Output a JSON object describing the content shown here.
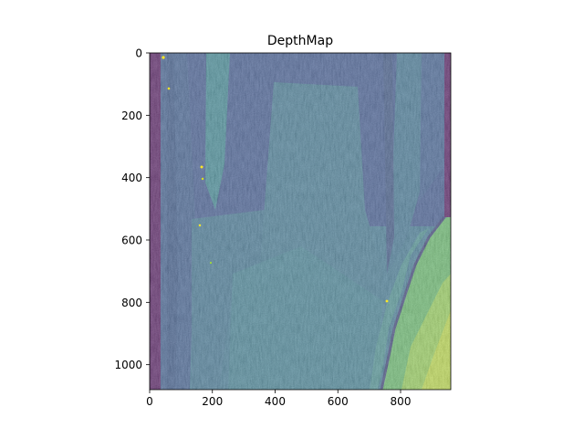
{
  "chart_data": {
    "type": "heatmap",
    "title": "DepthMap",
    "xlabel": "",
    "ylabel": "",
    "image_shape": [
      1080,
      960
    ],
    "xlim": [
      0,
      960
    ],
    "ylim": [
      1080,
      0
    ],
    "x_ticks": [
      0,
      200,
      400,
      600,
      800
    ],
    "y_ticks": [
      0,
      200,
      400,
      600,
      800,
      1000
    ],
    "colormap": "viridis",
    "value_range": [
      0,
      1
    ],
    "grid": false,
    "legend": "none",
    "regions": [
      {
        "name": "left border",
        "x": [
          0,
          35
        ],
        "y": [
          0,
          1080
        ],
        "value": 0.0
      },
      {
        "name": "right border",
        "x": [
          945,
          960
        ],
        "y": [
          0,
          530
        ],
        "value": 0.0
      },
      {
        "name": "near wall lower right",
        "x": [
          800,
          960
        ],
        "y": [
          530,
          1080
        ],
        "value": 0.85
      }
    ]
  },
  "colors": {
    "viridis_low": "#440154",
    "viridis_dark_blue": "#2c4a8a",
    "viridis_mid": "#2f6f8e",
    "viridis_teal": "#21918c",
    "viridis_green": "#5ec962",
    "viridis_high": "#fde725"
  }
}
